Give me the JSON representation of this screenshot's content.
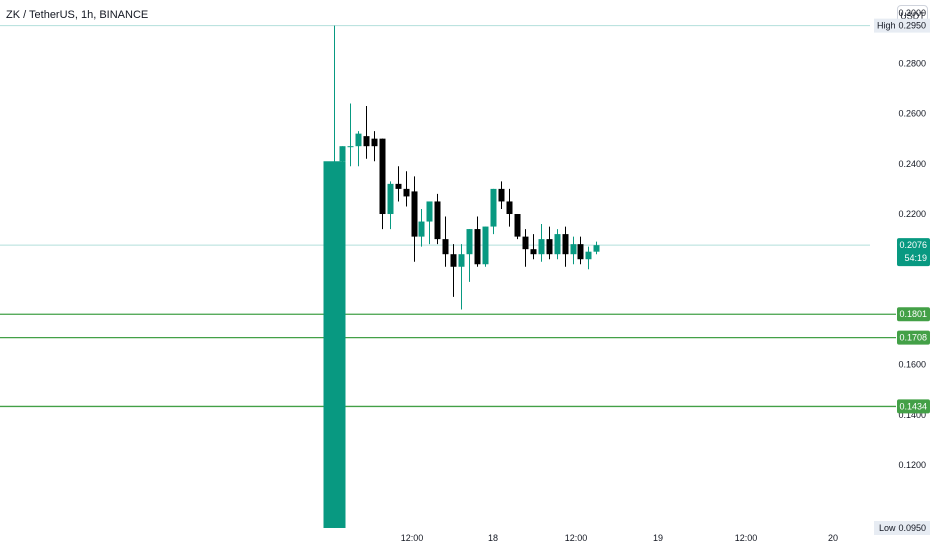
{
  "header": {
    "title": "ZK / TetherUS, 1h, BINANCE",
    "currency": "USDT"
  },
  "colors": {
    "up": "#089981",
    "down": "#000000",
    "level_line": "#43a047",
    "level_label_bg": "#43a047",
    "last_price_bg": "#089981",
    "axis_text": "#131722",
    "hl_line": "#b2dfdb",
    "hl_label_bg": "#e7ecf3"
  },
  "chart_data": {
    "type": "candlestick",
    "symbol": "ZK / TetherUS",
    "interval": "1h",
    "exchange": "BINANCE",
    "ylim": [
      0.0942,
      0.3052
    ],
    "y_ticks": [
      "0.3000",
      "0.2800",
      "0.2600",
      "0.2400",
      "0.2200",
      "0.1600",
      "0.1400",
      "0.1200"
    ],
    "x_ticks": [
      "12:00",
      "18",
      "12:00",
      "19",
      "12:00",
      "20"
    ],
    "high": {
      "label": "High",
      "value": "0.2950"
    },
    "low": {
      "label": "Low",
      "value": "0.0950"
    },
    "last_price": {
      "value": "0.2076",
      "countdown": "54:19"
    },
    "levels": [
      {
        "value": 0.1801,
        "label": "0.1801"
      },
      {
        "value": 0.1708,
        "label": "0.1708"
      },
      {
        "value": 0.1434,
        "label": "0.1434"
      }
    ],
    "candles": [
      {
        "o": 0.095,
        "h": 0.295,
        "l": 0.095,
        "c": 0.241
      },
      {
        "o": 0.241,
        "h": 0.247,
        "l": 0.235,
        "c": 0.247
      },
      {
        "o": 0.247,
        "h": 0.264,
        "l": 0.239,
        "c": 0.247
      },
      {
        "o": 0.247,
        "h": 0.253,
        "l": 0.239,
        "c": 0.252
      },
      {
        "o": 0.251,
        "h": 0.263,
        "l": 0.242,
        "c": 0.247
      },
      {
        "o": 0.25,
        "h": 0.253,
        "l": 0.241,
        "c": 0.247
      },
      {
        "o": 0.25,
        "h": 0.25,
        "l": 0.214,
        "c": 0.22
      },
      {
        "o": 0.22,
        "h": 0.233,
        "l": 0.214,
        "c": 0.232
      },
      {
        "o": 0.232,
        "h": 0.239,
        "l": 0.225,
        "c": 0.23
      },
      {
        "o": 0.23,
        "h": 0.237,
        "l": 0.223,
        "c": 0.227
      },
      {
        "o": 0.229,
        "h": 0.235,
        "l": 0.201,
        "c": 0.211
      },
      {
        "o": 0.211,
        "h": 0.222,
        "l": 0.207,
        "c": 0.217
      },
      {
        "o": 0.217,
        "h": 0.225,
        "l": 0.208,
        "c": 0.225
      },
      {
        "o": 0.225,
        "h": 0.228,
        "l": 0.208,
        "c": 0.21
      },
      {
        "o": 0.21,
        "h": 0.219,
        "l": 0.199,
        "c": 0.204
      },
      {
        "o": 0.204,
        "h": 0.208,
        "l": 0.187,
        "c": 0.199
      },
      {
        "o": 0.199,
        "h": 0.208,
        "l": 0.182,
        "c": 0.204
      },
      {
        "o": 0.204,
        "h": 0.214,
        "l": 0.193,
        "c": 0.214
      },
      {
        "o": 0.214,
        "h": 0.219,
        "l": 0.199,
        "c": 0.2
      },
      {
        "o": 0.2,
        "h": 0.215,
        "l": 0.199,
        "c": 0.215
      },
      {
        "o": 0.215,
        "h": 0.23,
        "l": 0.212,
        "c": 0.23
      },
      {
        "o": 0.23,
        "h": 0.233,
        "l": 0.222,
        "c": 0.225
      },
      {
        "o": 0.225,
        "h": 0.23,
        "l": 0.215,
        "c": 0.22
      },
      {
        "o": 0.22,
        "h": 0.22,
        "l": 0.21,
        "c": 0.211
      },
      {
        "o": 0.211,
        "h": 0.214,
        "l": 0.199,
        "c": 0.206
      },
      {
        "o": 0.206,
        "h": 0.212,
        "l": 0.202,
        "c": 0.204
      },
      {
        "o": 0.204,
        "h": 0.216,
        "l": 0.201,
        "c": 0.21
      },
      {
        "o": 0.21,
        "h": 0.215,
        "l": 0.202,
        "c": 0.204
      },
      {
        "o": 0.204,
        "h": 0.214,
        "l": 0.202,
        "c": 0.212
      },
      {
        "o": 0.212,
        "h": 0.215,
        "l": 0.199,
        "c": 0.204
      },
      {
        "o": 0.204,
        "h": 0.211,
        "l": 0.2,
        "c": 0.208
      },
      {
        "o": 0.208,
        "h": 0.211,
        "l": 0.2,
        "c": 0.202
      },
      {
        "o": 0.202,
        "h": 0.207,
        "l": 0.198,
        "c": 0.205
      },
      {
        "o": 0.205,
        "h": 0.209,
        "l": 0.204,
        "c": 0.2076
      }
    ]
  }
}
